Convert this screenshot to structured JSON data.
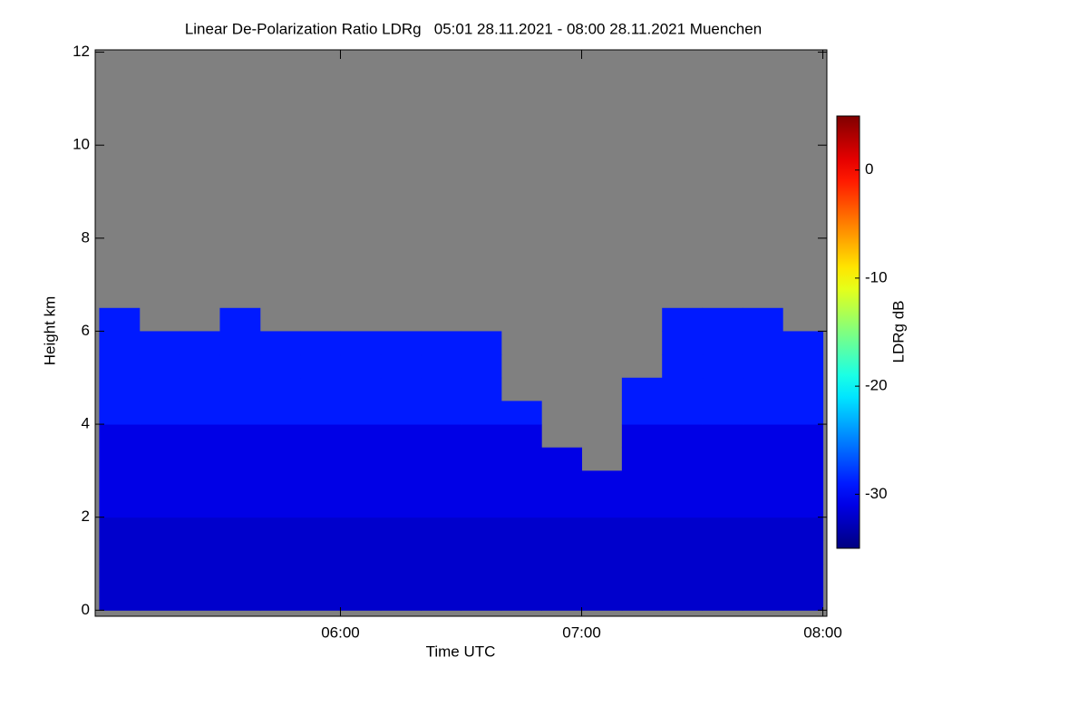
{
  "chart_data": {
    "type": "heatmap",
    "title": "Linear De-Polarization Ratio LDRg   05:01 28.11.2021 - 08:00 28.11.2021 Muenchen",
    "xlabel": "Time UTC",
    "ylabel": "Height km",
    "colorbar_label": "LDRg dB",
    "xlim": [
      299,
      481
    ],
    "xticks": [
      {
        "value": 360,
        "label": "06:00"
      },
      {
        "value": 420,
        "label": "07:00"
      },
      {
        "value": 480,
        "label": "08:00"
      }
    ],
    "ylim": [
      -0.13,
      12.05
    ],
    "yticks": [
      0,
      2,
      4,
      6,
      8,
      10,
      12
    ],
    "clim": [
      -35,
      5
    ],
    "colorbar_ticks": [
      0,
      -10,
      -20,
      -30
    ],
    "colormap": "jet",
    "background_color": "#808080",
    "xbins": [
      300,
      310,
      320,
      330,
      340,
      350,
      360,
      370,
      380,
      390,
      400,
      410,
      420,
      430,
      440,
      450,
      460,
      470,
      480
    ],
    "ybins": [
      0,
      0.5,
      1,
      1.5,
      2,
      2.5,
      3,
      3.5,
      4,
      4.5,
      5,
      5.5,
      6,
      6.5
    ],
    "z": [
      [
        -32,
        -32,
        -32,
        -32,
        -32,
        -32,
        -32,
        -32,
        -32,
        -32,
        -32,
        -32,
        -32,
        -32,
        -32,
        -32,
        -32,
        -32
      ],
      [
        -32,
        -32,
        -32,
        -32,
        -32,
        -32,
        -32,
        -32,
        -32,
        -32,
        -32,
        -32,
        -32,
        -32,
        -32,
        -32,
        -32,
        -32
      ],
      [
        -32,
        -32,
        -32,
        -32,
        -32,
        -32,
        -32,
        -32,
        -32,
        -32,
        -32,
        -32,
        -32,
        -32,
        -32,
        -32,
        -32,
        -32
      ],
      [
        -32,
        -32,
        -32,
        -32,
        -32,
        -32,
        -32,
        -32,
        -32,
        -32,
        -32,
        -32,
        -32,
        -32,
        -32,
        -32,
        -32,
        -32
      ],
      [
        -31,
        -31,
        -31,
        -31,
        -31,
        -31,
        -31,
        -31,
        -31,
        -31,
        -31,
        -31,
        -31,
        -31,
        -31,
        -31,
        -31,
        -31
      ],
      [
        -31,
        -31,
        -31,
        -31,
        -31,
        -31,
        -31,
        -31,
        -31,
        -31,
        -31,
        -31,
        -31,
        -31,
        -31,
        -31,
        -31,
        -31
      ],
      [
        -31,
        -31,
        -31,
        -31,
        -31,
        -31,
        -31,
        -31,
        -31,
        -31,
        -31,
        -31,
        null,
        -31,
        -31,
        -31,
        -31,
        -31
      ],
      [
        -31,
        -31,
        -31,
        -31,
        -31,
        -31,
        -31,
        -31,
        -31,
        -31,
        -31,
        null,
        null,
        -31,
        -31,
        -31,
        -31,
        -31
      ],
      [
        -29,
        -29,
        -29,
        -29,
        -29,
        -29,
        -29,
        -29,
        -29,
        -29,
        -29,
        null,
        null,
        -29,
        -29,
        -29,
        -29,
        -29
      ],
      [
        -29,
        -29,
        -29,
        -29,
        -29,
        -29,
        -29,
        -29,
        -29,
        -29,
        null,
        null,
        null,
        -29,
        -29,
        -29,
        -29,
        -29
      ],
      [
        -29,
        -29,
        -29,
        -29,
        -29,
        -29,
        -29,
        -29,
        -29,
        -29,
        null,
        null,
        null,
        null,
        -29,
        -29,
        -29,
        -29
      ],
      [
        -29,
        -29,
        -29,
        -29,
        -29,
        -29,
        -29,
        -29,
        -29,
        -29,
        null,
        null,
        null,
        null,
        -29,
        -29,
        -29,
        -29
      ],
      [
        -29,
        null,
        null,
        -29,
        null,
        null,
        null,
        null,
        null,
        null,
        null,
        null,
        null,
        null,
        -29,
        -29,
        -29,
        null
      ]
    ]
  }
}
